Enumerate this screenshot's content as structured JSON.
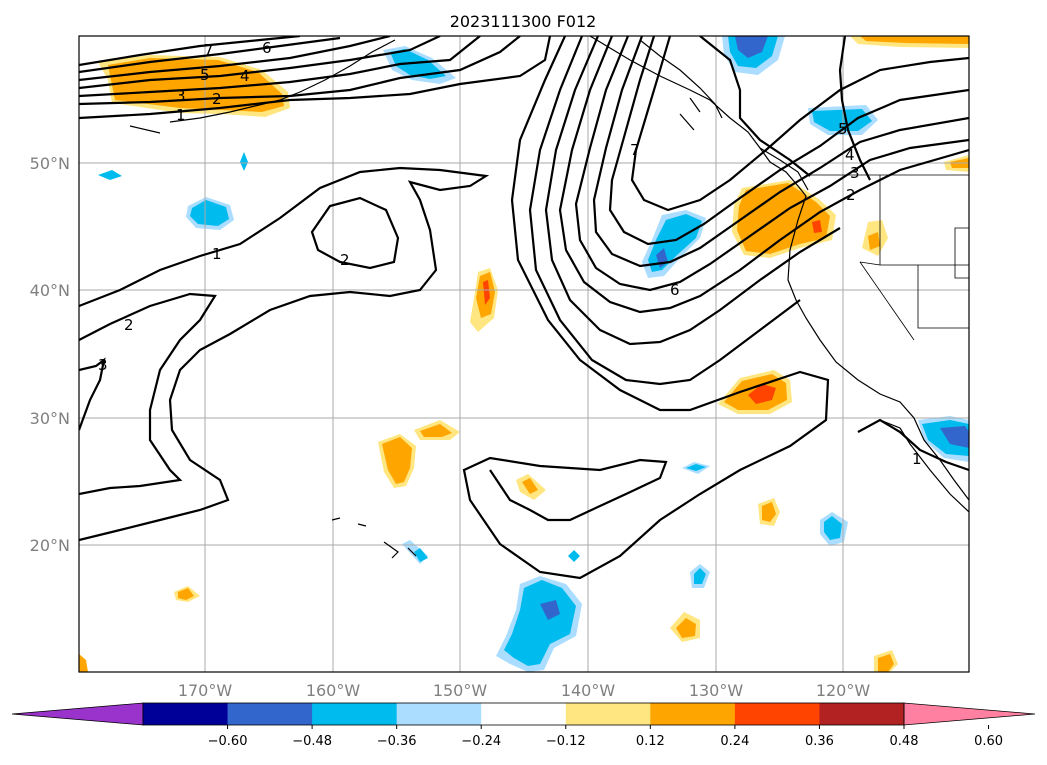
{
  "title": "2023111300 F012",
  "map": {
    "lat_labels": [
      "50°N",
      "40°N",
      "30°N",
      "20°N"
    ],
    "lon_labels": [
      "170°W",
      "160°W",
      "150°W",
      "140°W",
      "130°W",
      "120°W"
    ]
  },
  "contour_labels": [
    "7",
    "6",
    "5",
    "4",
    "3",
    "2",
    "1",
    "1",
    "2",
    "2",
    "3",
    "7",
    "6",
    "2",
    "3",
    "4",
    "5",
    "1"
  ],
  "colorbar": {
    "colors": [
      "#9933cc",
      "#000099",
      "#3366cc",
      "#00bbee",
      "#aaddff",
      "#ffffff",
      "#ffe680",
      "#ffa500",
      "#ff4400",
      "#b22222",
      "#ff80a0"
    ],
    "tick_labels": [
      "−0.60",
      "−0.48",
      "−0.36",
      "−0.24",
      "−0.12",
      "0.12",
      "0.24",
      "0.36",
      "0.48",
      "0.60"
    ]
  },
  "colors": {
    "orange": "#ffa500",
    "red": "#ff4400",
    "yellow": "#ffe680",
    "light_blue": "#aaddff",
    "cyan": "#00bbee",
    "blue": "#3366cc"
  }
}
